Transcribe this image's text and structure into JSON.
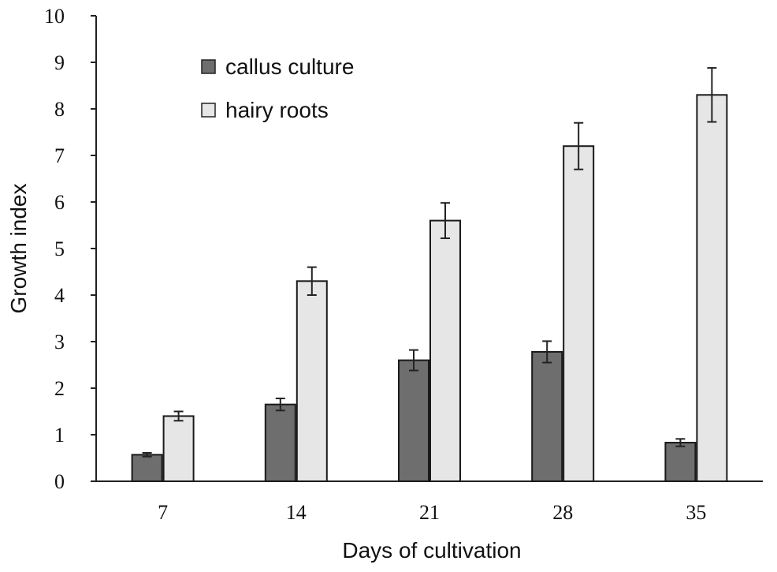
{
  "chart_data": {
    "type": "bar",
    "title": "",
    "xlabel": "Days of cultivation",
    "ylabel": "Growth index",
    "categories": [
      "7",
      "14",
      "21",
      "28",
      "35"
    ],
    "ylim": [
      0,
      10
    ],
    "yticks": [
      "0",
      "1",
      "2",
      "3",
      "4",
      "5",
      "6",
      "7",
      "8",
      "9",
      "10"
    ],
    "legend_position": "top-left",
    "grid": false,
    "series": [
      {
        "name": "callus culture",
        "color": "#6e6e6e",
        "values": [
          0.57,
          1.65,
          2.6,
          2.78,
          0.83
        ],
        "errors": [
          0.04,
          0.13,
          0.22,
          0.23,
          0.08
        ]
      },
      {
        "name": "hairy roots",
        "color": "#e6e6e6",
        "values": [
          1.4,
          4.3,
          5.6,
          7.2,
          8.3
        ],
        "errors": [
          0.1,
          0.3,
          0.38,
          0.5,
          0.58
        ]
      }
    ]
  }
}
